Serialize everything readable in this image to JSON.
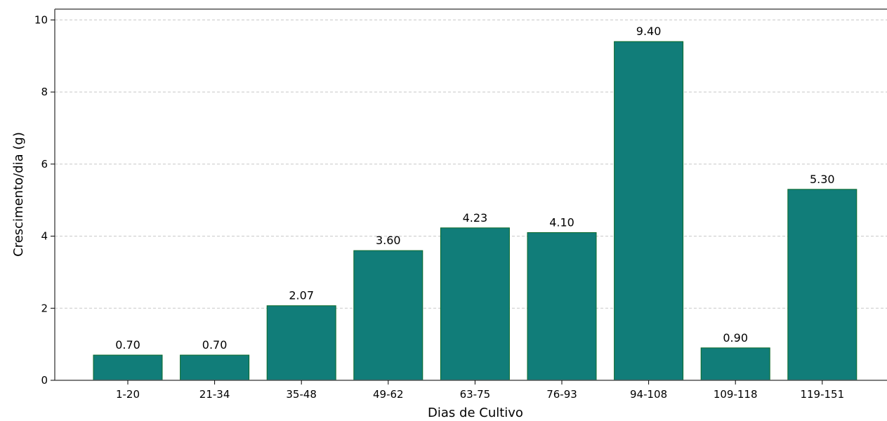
{
  "chart_data": {
    "type": "bar",
    "title": "",
    "xlabel": "Dias de Cultivo",
    "ylabel": "Crescimento/dia (g)",
    "categories": [
      "1-20",
      "21-34",
      "35-48",
      "49-62",
      "63-75",
      "76-93",
      "94-108",
      "109-118",
      "119-151"
    ],
    "values": [
      0.7,
      0.7,
      2.07,
      3.6,
      4.23,
      4.1,
      9.4,
      0.9,
      5.3
    ],
    "value_labels": [
      "0.70",
      "0.70",
      "2.07",
      "3.60",
      "4.23",
      "4.10",
      "9.40",
      "0.90",
      "5.30"
    ],
    "ylim": [
      0,
      10.3
    ],
    "yticks": [
      0,
      2,
      4,
      6,
      8,
      10
    ],
    "grid": "y dashed",
    "bar_color": "#117d79",
    "bar_edge_color": "#0b6a2b"
  }
}
